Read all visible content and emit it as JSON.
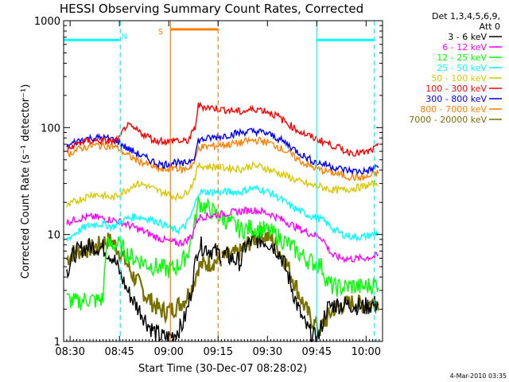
{
  "chart_data": {
    "type": "line",
    "title": "HESSI Observing Summary Count Rates, Corrected",
    "xlabel": "Start Time (30-Dec-07 08:28:02)",
    "ylabel": "Corrected Count Rate (s⁻¹ detector⁻¹)",
    "yscale": "log",
    "ylim": [
      1,
      1000
    ],
    "xlim_minutes": [
      508.03,
      605
    ],
    "xticks": [
      {
        "label": "08:30",
        "minute": 510
      },
      {
        "label": "08:45",
        "minute": 525
      },
      {
        "label": "09:00",
        "minute": 540
      },
      {
        "label": "09:15",
        "minute": 555
      },
      {
        "label": "09:30",
        "minute": 570
      },
      {
        "label": "09:45",
        "minute": 585
      },
      {
        "label": "10:00",
        "minute": 600
      }
    ],
    "yticks": [
      {
        "label": "1",
        "value": 1
      },
      {
        "label": "10",
        "value": 10
      },
      {
        "label": "100",
        "value": 100
      },
      {
        "label": "1000",
        "value": 1000
      }
    ],
    "legend_header": [
      "Det 1,3,4,5,6,9,",
      "Att 0"
    ],
    "legend_placement": "right",
    "grid": false,
    "data_gap_minutes": [
      556,
      562
    ],
    "series": [
      {
        "name": "3 - 6 keV",
        "color": "#000000",
        "x": [
          509,
          511,
          514,
          517,
          520,
          523,
          525,
          526,
          527,
          528,
          530,
          532,
          534,
          536,
          538,
          540,
          542,
          544,
          545,
          546,
          547,
          548,
          549,
          562,
          563,
          565,
          567,
          569,
          571,
          573,
          575,
          577,
          579,
          581,
          583,
          585,
          586,
          587,
          588,
          590,
          593,
          596,
          599,
          602,
          604
        ],
        "y": [
          4.5,
          6.5,
          7.5,
          7.8,
          7.5,
          6.2,
          4.5,
          3.8,
          3.2,
          2.8,
          2.2,
          1.8,
          1.4,
          1.2,
          1.1,
          1.1,
          1.2,
          1.4,
          1.7,
          2.2,
          3.2,
          5.2,
          8.0,
          5.5,
          7.5,
          8.5,
          9.0,
          8.8,
          8.2,
          7.2,
          5.5,
          3.5,
          2.2,
          1.5,
          1.2,
          1.05,
          1.2,
          1.6,
          2.0,
          2.2,
          2.2,
          2.2,
          2.1,
          2.2,
          2.3
        ]
      },
      {
        "name": "6 - 12 keV",
        "color": "#ff00ff",
        "x": [
          509,
          512,
          515,
          518,
          521,
          524,
          527,
          530,
          533,
          536,
          539,
          541,
          543,
          545,
          547,
          548,
          549,
          562,
          565,
          568,
          571,
          574,
          577,
          580,
          583,
          586,
          587,
          588,
          590,
          593,
          596,
          599,
          602,
          604
        ],
        "y": [
          13,
          14,
          14.5,
          14.5,
          14,
          13.5,
          12.5,
          11.5,
          10.5,
          9.5,
          8.8,
          8.5,
          8.3,
          8.6,
          9.8,
          12,
          14.5,
          16.5,
          17,
          16.5,
          15.5,
          14,
          12.5,
          11.2,
          10.2,
          9.6,
          9.0,
          7.8,
          6.3,
          6.0,
          5.9,
          6.0,
          6.2,
          6.4
        ]
      },
      {
        "name": "12 - 25 keV",
        "color": "#00ff00",
        "x": [
          509,
          512,
          515,
          518,
          520,
          521,
          525,
          528,
          531,
          534,
          537,
          540,
          542,
          544,
          546,
          547,
          548,
          549,
          562,
          565,
          568,
          571,
          574,
          577,
          580,
          583,
          586,
          587,
          588,
          590,
          593,
          596,
          599,
          602,
          604
        ],
        "y": [
          2.5,
          2.3,
          2.5,
          2.4,
          2.5,
          8.0,
          8.0,
          6.3,
          5.8,
          5.2,
          4.9,
          4.7,
          4.9,
          5.5,
          7.0,
          9.5,
          13,
          20,
          11,
          11.5,
          11.2,
          10.5,
          9.2,
          7.8,
          6.5,
          5.6,
          5.2,
          4.7,
          3.7,
          3.2,
          3.2,
          3.3,
          3.2,
          3.4,
          3.5
        ]
      },
      {
        "name": "25 - 50 keV",
        "color": "#00ffff",
        "x": [
          509,
          511,
          514,
          517,
          520,
          523,
          525,
          527,
          530,
          533,
          536,
          539,
          541,
          543,
          545,
          547,
          548,
          549,
          562,
          565,
          568,
          571,
          574,
          577,
          580,
          583,
          586,
          587,
          588,
          590,
          593,
          596,
          599,
          602,
          604
        ],
        "y": [
          9.0,
          10,
          11.5,
          12.5,
          12.5,
          11.8,
          12.8,
          14,
          14.8,
          14.2,
          13.5,
          12.2,
          11.2,
          11.0,
          12,
          15.5,
          19,
          25,
          25,
          27,
          26.5,
          24.5,
          21.5,
          18.5,
          16.5,
          15.0,
          14.0,
          13.5,
          12.8,
          11.3,
          10.0,
          9.5,
          9.5,
          10.0,
          10.6
        ]
      },
      {
        "name": "50 - 100 keV",
        "color": "#d9c800",
        "x": [
          509,
          511,
          514,
          517,
          520,
          523,
          525,
          527,
          530,
          533,
          536,
          539,
          541,
          543,
          545,
          547,
          548,
          549,
          562,
          565,
          568,
          571,
          574,
          577,
          580,
          583,
          586,
          588,
          590,
          593,
          596,
          599,
          602,
          604
        ],
        "y": [
          18,
          20,
          22,
          24,
          23,
          22,
          24,
          26,
          30,
          29,
          26,
          24.5,
          23,
          22.5,
          24,
          29,
          35,
          44,
          41,
          44,
          43,
          40,
          37,
          34,
          31,
          29,
          28,
          27,
          26,
          26,
          27,
          28,
          29.5,
          31
        ]
      },
      {
        "name": "100 - 300 keV",
        "color": "#ff0000",
        "x": [
          509,
          511,
          514,
          517,
          520,
          523,
          525,
          527,
          530,
          533,
          536,
          538,
          540,
          542,
          544,
          546,
          548,
          549,
          562,
          564,
          567,
          570,
          573,
          576,
          579,
          582,
          585,
          588,
          591,
          594,
          597,
          600,
          602,
          604
        ],
        "y": [
          60,
          68,
          74,
          75,
          75,
          74,
          78,
          105,
          95,
          85,
          75,
          76,
          73,
          78,
          73,
          76,
          100,
          160,
          140,
          145,
          150,
          142,
          128,
          110,
          95,
          85,
          78,
          72,
          66,
          60,
          58,
          58,
          62,
          67
        ]
      },
      {
        "name": "300 - 800 keV",
        "color": "#0000ff",
        "x": [
          509,
          511,
          514,
          517,
          520,
          523,
          525,
          527,
          530,
          533,
          536,
          538,
          540,
          542,
          544,
          546,
          548,
          549,
          562,
          564,
          567,
          570,
          573,
          576,
          579,
          582,
          585,
          588,
          591,
          594,
          597,
          600,
          602,
          604
        ],
        "y": [
          65,
          72,
          78,
          80,
          80,
          78,
          73,
          65,
          58,
          52,
          47,
          45,
          46,
          48,
          45,
          48,
          55,
          76,
          90,
          92,
          92,
          88,
          80,
          70,
          60,
          52,
          47,
          45,
          42,
          40,
          39,
          39,
          41,
          44
        ]
      },
      {
        "name": "800 - 7000 keV",
        "color": "#ff8000",
        "x": [
          509,
          511,
          514,
          517,
          520,
          523,
          525,
          527,
          530,
          533,
          536,
          538,
          540,
          542,
          544,
          546,
          548,
          549,
          562,
          564,
          567,
          570,
          573,
          576,
          579,
          582,
          585,
          588,
          591,
          594,
          597,
          600,
          602,
          604
        ],
        "y": [
          55,
          60,
          65,
          68,
          68,
          67,
          63,
          56,
          50,
          46,
          42,
          40,
          41,
          43,
          40,
          42,
          48,
          65,
          72,
          75,
          76,
          73,
          67,
          59,
          51,
          45,
          41,
          39,
          37,
          35,
          34,
          34,
          36,
          38
        ]
      },
      {
        "name": "7000 - 20000 keV",
        "color": "#7a7000",
        "x": [
          509,
          511,
          514,
          517,
          519,
          521,
          523,
          525,
          527,
          529,
          531,
          533,
          535,
          537,
          539,
          541,
          543,
          545,
          547,
          548,
          549,
          562,
          564,
          566,
          568,
          570,
          572,
          574,
          576,
          578,
          580,
          582,
          584,
          586,
          588,
          590,
          593,
          596,
          599,
          602,
          604
        ],
        "y": [
          5.8,
          6.8,
          7.2,
          7.5,
          8.0,
          8.8,
          8.5,
          7.0,
          5.5,
          4.2,
          3.4,
          2.7,
          2.3,
          2.0,
          1.9,
          2.0,
          2.2,
          2.5,
          3.2,
          4.0,
          5.0,
          6.8,
          8.2,
          9.2,
          10,
          9.6,
          8.6,
          6.8,
          5.2,
          3.7,
          2.6,
          1.9,
          1.5,
          1.3,
          1.6,
          2.0,
          2.2,
          2.3,
          2.2,
          2.3,
          2.4
        ]
      }
    ],
    "annotations": [
      {
        "text": "N",
        "color": "#00ffff",
        "minute": 526.5,
        "value": 720
      },
      {
        "text": "S",
        "color": "#ff8000",
        "minute": 537.5,
        "value": 800
      }
    ],
    "bars": [
      {
        "color": "#00ffff",
        "minutes": [
          508.03,
          525
        ],
        "value": 660
      },
      {
        "color": "#00ffff",
        "minutes": [
          585,
          602.5
        ],
        "value": 660
      },
      {
        "color": "#ff8000",
        "minutes": [
          540.5,
          555
        ],
        "value": 830
      }
    ],
    "markers": [
      {
        "color": "#00ffff",
        "style": "dashed",
        "minute": 525.3
      },
      {
        "color": "#00ffff",
        "style": "solid",
        "minute": 585
      },
      {
        "color": "#00ffff",
        "style": "dashed",
        "minute": 602.5
      },
      {
        "color": "#ff8000",
        "style": "solid",
        "minute": 540.5
      },
      {
        "color": "#ff8000",
        "style": "dashed",
        "minute": 555
      }
    ]
  },
  "footer": {
    "date_stamp": "4-Mar-2010 03:35"
  }
}
